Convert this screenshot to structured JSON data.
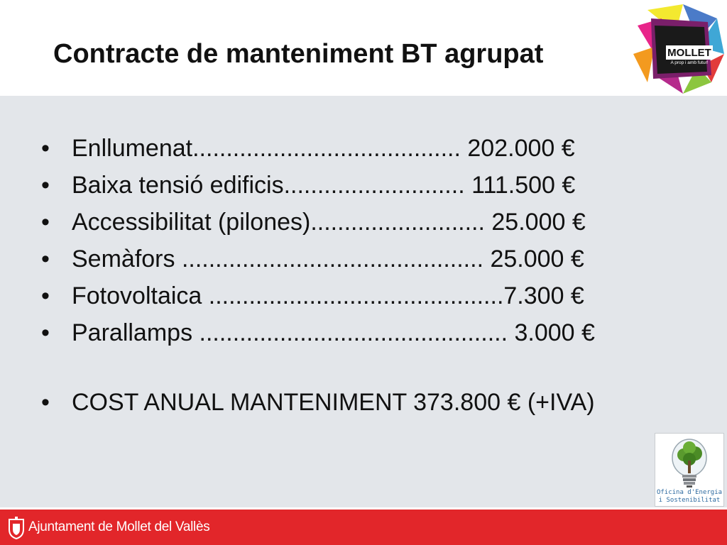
{
  "slide": {
    "title": "Contracte de manteniment BT agrupat"
  },
  "items": [
    "Enllumenat........................................  202.000 €",
    "Baixa tensió edificis...........................  111.500 €",
    "Accessibilitat (pilones).......................... 25.000 €",
    "Semàfors ............................................. 25.000 €",
    "Fotovoltaica ............................................7.300 €",
    "Parallamps .............................................. 3.000 €"
  ],
  "total": "COST ANUAL MANTENIMENT 373.800 € (+IVA)",
  "logo_top": {
    "name": "MOLLET",
    "tagline": "A prop i amb futur!"
  },
  "oficina_logo": {
    "line1": "Oficina d'Energia",
    "line2": "i Sostenibilitat"
  },
  "footer": {
    "text": "Ajuntament de Mollet del Vallès"
  },
  "colors": {
    "footer_red": "#e2262a",
    "content_bg": "#e3e6ea"
  }
}
